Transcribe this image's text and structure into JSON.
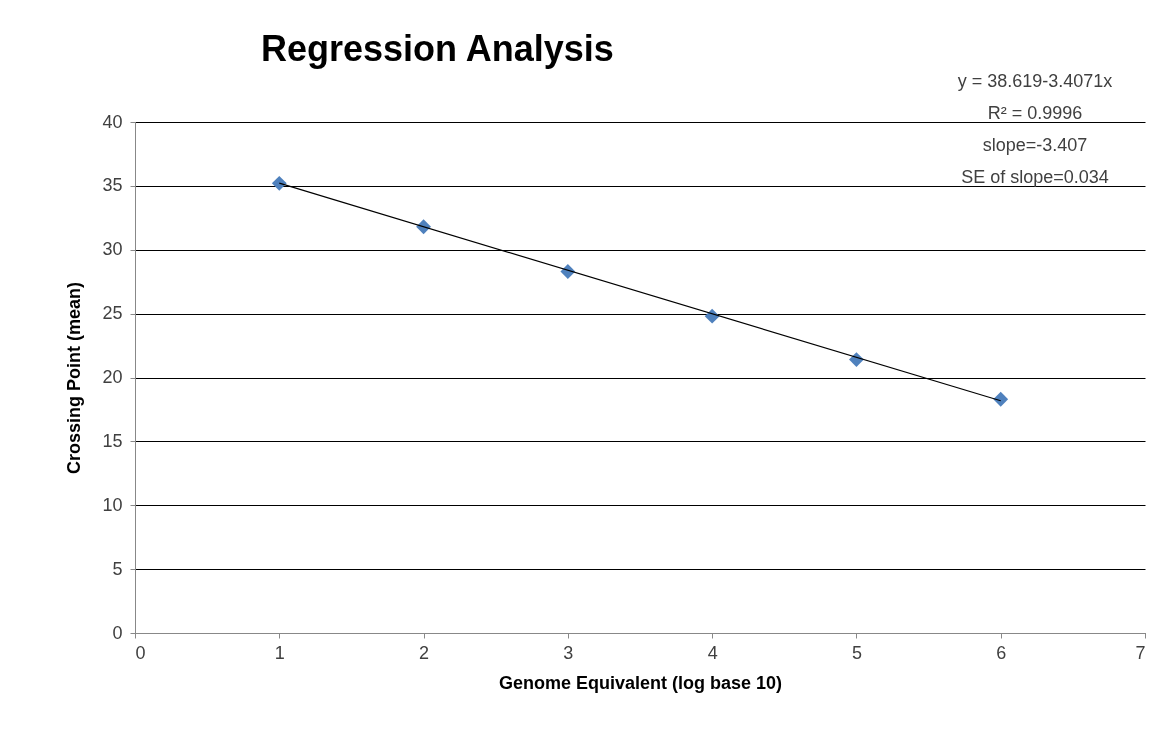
{
  "chart_data": {
    "type": "scatter",
    "title": "Regression Analysis",
    "xlabel": "Genome Equivalent (log base 10)",
    "ylabel": "Crossing Point (mean)",
    "x": [
      1,
      2,
      3,
      4,
      5,
      6
    ],
    "series": [
      {
        "type": "scatter",
        "color": "#4f81bd",
        "values": [
          35.2,
          31.8,
          28.3,
          24.8,
          21.4,
          18.3
        ]
      },
      {
        "type": "line",
        "marker": "none",
        "color": "#000000",
        "x": [
          1,
          6
        ],
        "values": [
          35.21,
          18.18
        ]
      }
    ],
    "annotations": [
      "y = 38.619-3.4071x",
      "R² = 0.9996",
      "slope=-3.407",
      "SE of slope=0.034"
    ],
    "xlim": [
      0,
      7
    ],
    "xticks": [
      0,
      1,
      2,
      3,
      4,
      5,
      6,
      7
    ],
    "ylim": [
      0,
      40
    ],
    "yticks": [
      0,
      5,
      10,
      15,
      20,
      25,
      30,
      35,
      40
    ],
    "grid": "y",
    "marker": "diamond"
  }
}
